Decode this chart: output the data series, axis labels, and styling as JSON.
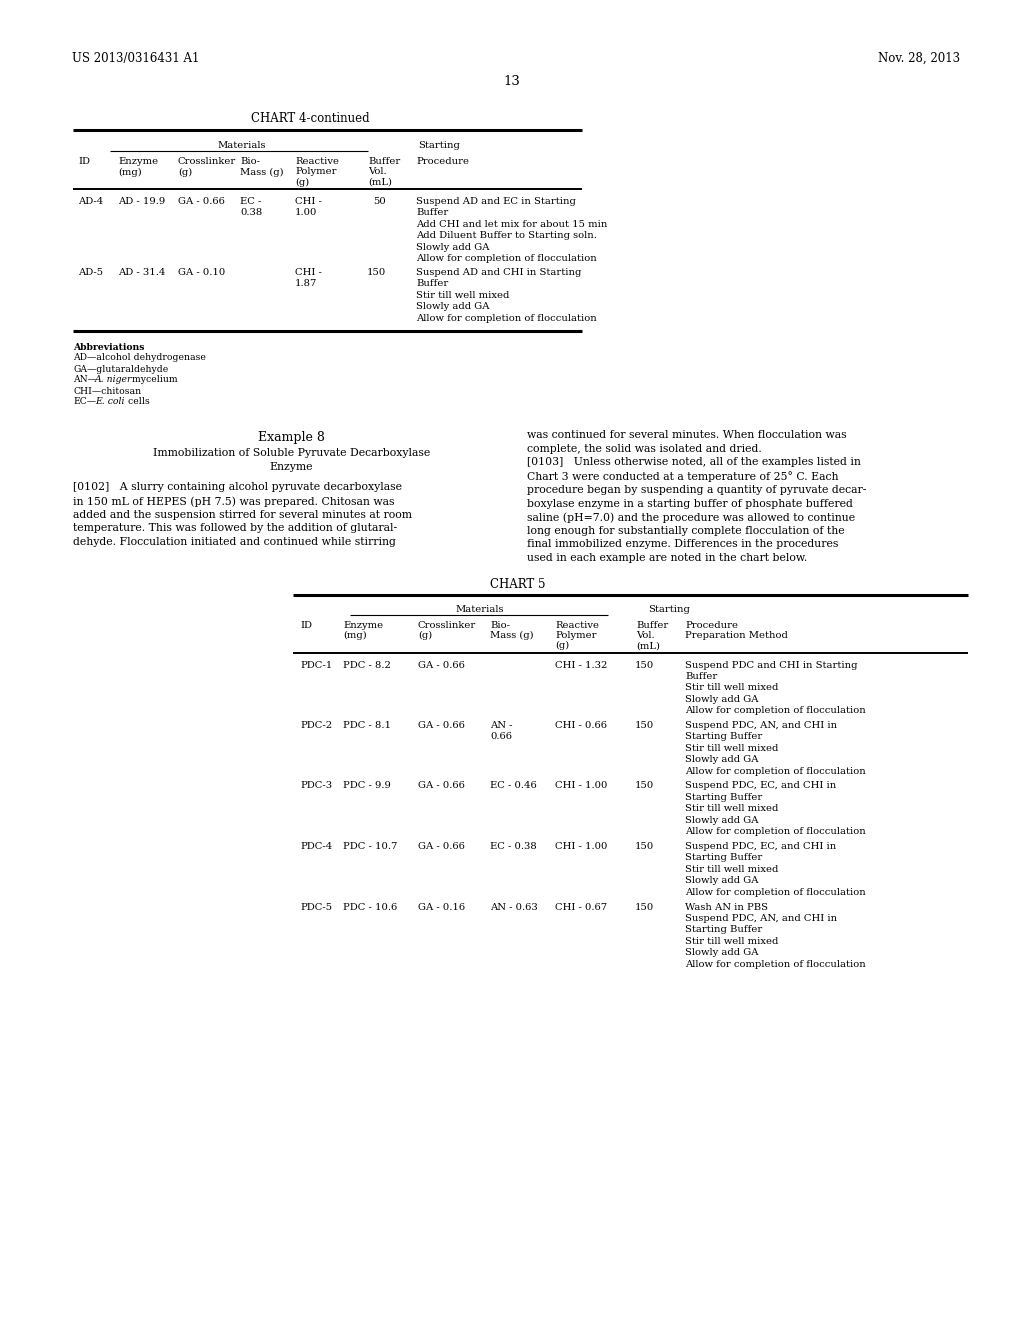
{
  "page_left_text": "US 2013/0316431 A1",
  "page_right_text": "Nov. 28, 2013",
  "page_number": "13",
  "chart4_title": "CHART 4-continued",
  "chart4_rows": [
    {
      "id": "AD-4",
      "enzyme": "AD - 19.9",
      "crosslinker": "GA - 0.66",
      "bio_mass": "EC -\n0.38",
      "reactive_polymer": "CHI -\n1.00",
      "buffer_vol": "50",
      "procedure": "Suspend AD and EC in Starting\nBuffer\nAdd CHI and let mix for about 15 min\nAdd Diluent Buffer to Starting soln.\nSlowly add GA\nAllow for completion of flocculation"
    },
    {
      "id": "AD-5",
      "enzyme": "AD - 31.4",
      "crosslinker": "GA - 0.10",
      "bio_mass": "",
      "reactive_polymer": "CHI -\n1.87",
      "buffer_vol": "150",
      "procedure": "Suspend AD and CHI in Starting\nBuffer\nStir till well mixed\nSlowly add GA\nAllow for completion of flocculation"
    }
  ],
  "abbreviations": [
    "Abbreviations",
    "AD—alcohol dehydrogenase",
    "GA—glutaraldehyde",
    "AN—A. niger mycelium",
    "CHI—chitosan",
    "EC—E. coli cells"
  ],
  "example8_title": "Example 8",
  "example8_subtitle": "Immobilization of Soluble Pyruvate Decarboxylase\nEnzyme",
  "example8_left_text": "[0102]   A slurry containing alcohol pyruvate decarboxylase\nin 150 mL of HEPES (pH 7.5) was prepared. Chitosan was\nadded and the suspension stirred for several minutes at room\ntemperature. This was followed by the addition of glutaral-\ndehyde. Flocculation initiated and continued while stirring",
  "example8_right_text": "was continued for several minutes. When flocculation was\ncomplete, the solid was isolated and dried.\n[0103]   Unless otherwise noted, all of the examples listed in\nChart 3 were conducted at a temperature of 25° C. Each\nprocedure began by suspending a quantity of pyruvate decar-\nboxylase enzyme in a starting buffer of phosphate buffered\nsaline (pH=7.0) and the procedure was allowed to continue\nlong enough for substantially complete flocculation of the\nfinal immobilized enzyme. Differences in the procedures\nused in each example are noted in the chart below.",
  "chart5_title": "CHART 5",
  "chart5_rows": [
    {
      "id": "PDC-1",
      "enzyme": "PDC - 8.2",
      "crosslinker": "GA - 0.66",
      "bio_mass": "",
      "reactive_polymer": "CHI - 1.32",
      "buffer_vol": "150",
      "procedure": "Suspend PDC and CHI in Starting\nBuffer\nStir till well mixed\nSlowly add GA\nAllow for completion of flocculation"
    },
    {
      "id": "PDC-2",
      "enzyme": "PDC - 8.1",
      "crosslinker": "GA - 0.66",
      "bio_mass": "AN -\n0.66",
      "reactive_polymer": "CHI - 0.66",
      "buffer_vol": "150",
      "procedure": "Suspend PDC, AN, and CHI in\nStarting Buffer\nStir till well mixed\nSlowly add GA\nAllow for completion of flocculation"
    },
    {
      "id": "PDC-3",
      "enzyme": "PDC - 9.9",
      "crosslinker": "GA - 0.66",
      "bio_mass": "EC - 0.46",
      "reactive_polymer": "CHI - 1.00",
      "buffer_vol": "150",
      "procedure": "Suspend PDC, EC, and CHI in\nStarting Buffer\nStir till well mixed\nSlowly add GA\nAllow for completion of flocculation"
    },
    {
      "id": "PDC-4",
      "enzyme": "PDC - 10.7",
      "crosslinker": "GA - 0.66",
      "bio_mass": "EC - 0.38",
      "reactive_polymer": "CHI - 1.00",
      "buffer_vol": "150",
      "procedure": "Suspend PDC, EC, and CHI in\nStarting Buffer\nStir till well mixed\nSlowly add GA\nAllow for completion of flocculation"
    },
    {
      "id": "PDC-5",
      "enzyme": "PDC - 10.6",
      "crosslinker": "GA - 0.16",
      "bio_mass": "AN - 0.63",
      "reactive_polymer": "CHI - 0.67",
      "buffer_vol": "150",
      "procedure": "Wash AN in PBS\nSuspend PDC, AN, and CHI in\nStarting Buffer\nStir till well mixed\nSlowly add GA\nAllow for completion of flocculation"
    }
  ]
}
